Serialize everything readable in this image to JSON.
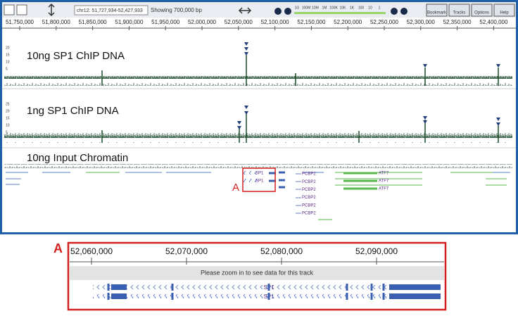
{
  "toolbar": {
    "locus": "chr12: 51,727,934-52,427,933",
    "showing": "Showing 700,000 bp",
    "zoom_scale": [
      "1G",
      "100M",
      "10M",
      "1M",
      "100K",
      "10K",
      "1K",
      "100",
      "10",
      "1"
    ],
    "buttons": [
      "Bookmark",
      "Tracks",
      "Options",
      "Help"
    ]
  },
  "ruler": {
    "ticks": [
      "51,750,000",
      "51,800,000",
      "51,850,000",
      "51,900,000",
      "51,950,000",
      "52,000,000",
      "52,050,000",
      "52,100,000",
      "52,150,000",
      "52,200,000",
      "52,250,000",
      "52,300,000",
      "52,350,000",
      "52,400,000"
    ]
  },
  "tracks": [
    {
      "label": "10ng SP1 ChIP DNA",
      "axis": [
        "20",
        "15",
        "10",
        "5"
      ]
    },
    {
      "label": "1ng SP1 ChIP DNA",
      "axis": [
        "25",
        "20",
        "15",
        "10",
        "5"
      ]
    },
    {
      "label": "10ng Input Chromatin"
    }
  ],
  "genes": {
    "sp1": [
      "SP1",
      "SP1"
    ],
    "pcbp2": [
      "PCBP2",
      "PCBP2",
      "PCBP2",
      "PCBP2",
      "PCBP2",
      "PCBP2"
    ],
    "atf7": [
      "ATF7",
      "ATF7",
      "ATF7"
    ]
  },
  "callout": "A",
  "inset": {
    "label": "A",
    "ticks": [
      "52,060,000",
      "52,070,000",
      "52,080,000",
      "52,090,000"
    ],
    "message": "Please zoom in to see data for this track",
    "transcripts": [
      "SP1",
      "SP1"
    ]
  }
}
